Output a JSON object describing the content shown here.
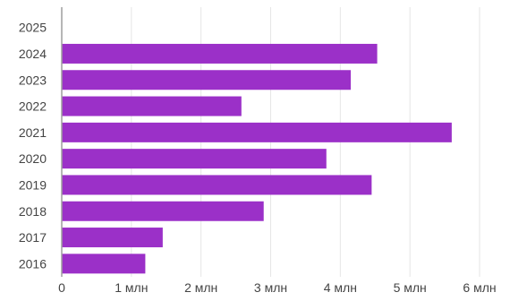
{
  "chart_data": {
    "type": "bar",
    "orientation": "horizontal",
    "categories": [
      "2025",
      "2024",
      "2023",
      "2022",
      "2021",
      "2020",
      "2019",
      "2018",
      "2017",
      "2016"
    ],
    "values": [
      0,
      4.53,
      4.15,
      2.58,
      5.6,
      3.8,
      4.45,
      2.9,
      1.45,
      1.2
    ],
    "xlim": [
      0,
      6
    ],
    "x_ticks": [
      0,
      1,
      2,
      3,
      4,
      5,
      6
    ],
    "x_tick_labels": [
      "0",
      "1 млн",
      "2 млн",
      "3 млн",
      "4 млн",
      "5 млн",
      "6 млн"
    ],
    "grid": "vertical",
    "bar_color": "#9b30c8",
    "gridline_color": "#e6e6e6",
    "axis_color": "#9e9e9e"
  }
}
